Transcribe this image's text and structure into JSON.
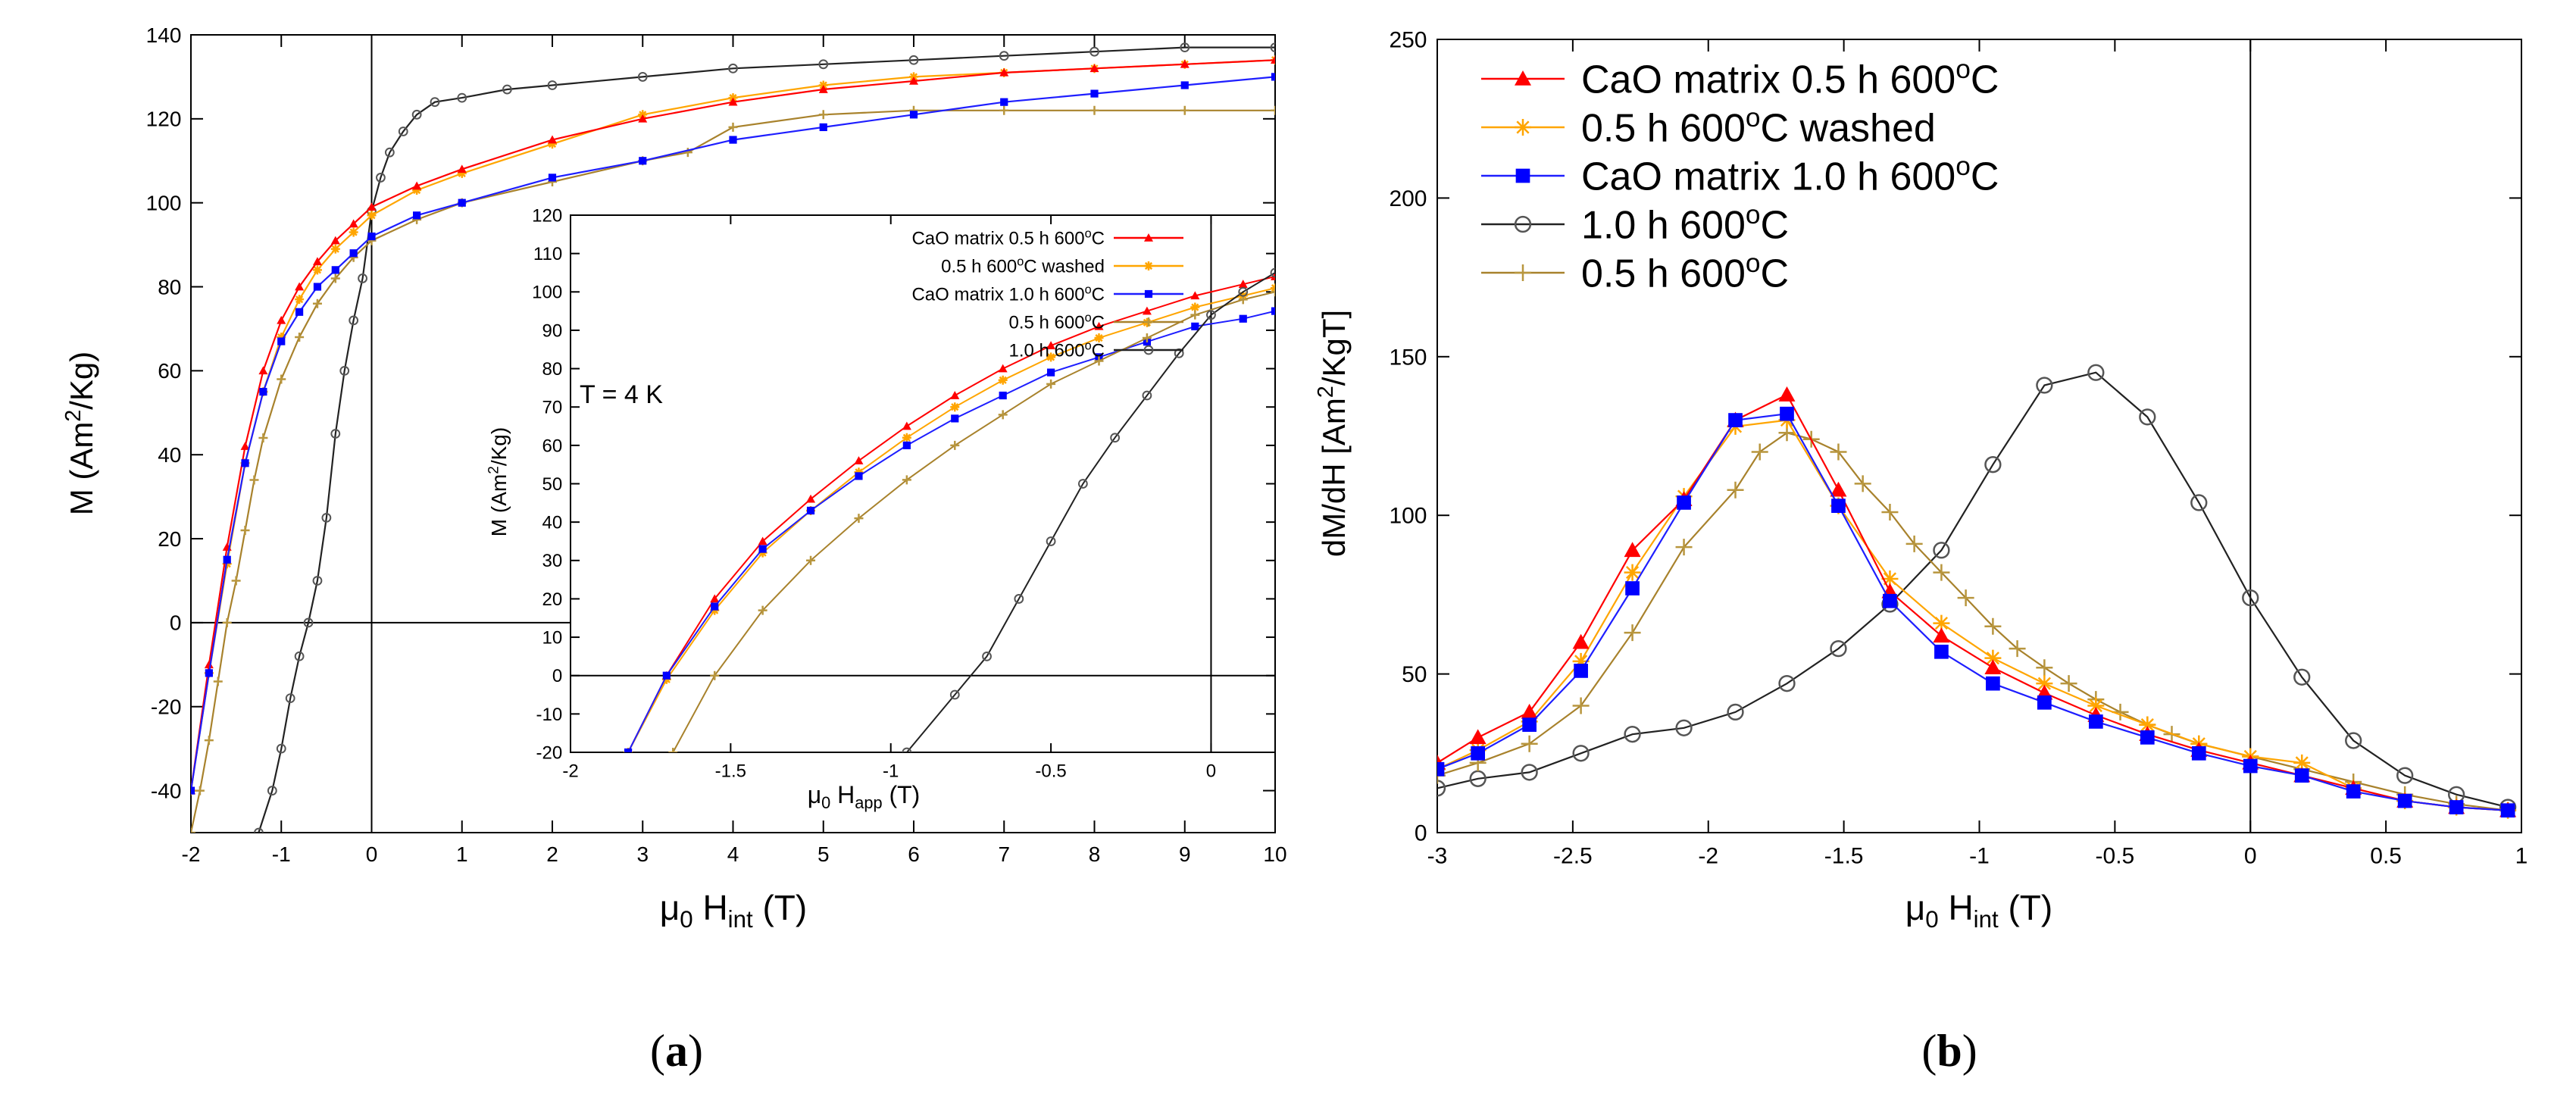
{
  "colors": {
    "cao_05": "#ff0000",
    "washed_05": "#ffa500",
    "cao_10": "#0000ff",
    "plain_10": "#555555",
    "plain_05": "#b8963e",
    "line_cao_05": "#ff0000",
    "line_washed_05": "#ffa500",
    "line_cao_10": "#1e1eff",
    "line_plain_10": "#222222",
    "line_plain_05": "#a8822c"
  },
  "chart_data": [
    {
      "id": "a",
      "type": "line",
      "caption_letter": "a",
      "xlabel": {
        "main": "μ",
        "sub0": "0",
        "mid": " H",
        "sub1": "int",
        "end": " (T)"
      },
      "ylabel": {
        "pre": "M (Am",
        "sup": "2",
        "post": "/Kg)"
      },
      "xlim": [
        -2,
        10
      ],
      "ylim": [
        -50,
        140
      ],
      "xticks": [
        -2,
        -1,
        0,
        1,
        2,
        3,
        4,
        5,
        6,
        7,
        8,
        9,
        10
      ],
      "yticks": [
        -40,
        -20,
        0,
        20,
        40,
        60,
        80,
        100,
        120,
        140
      ],
      "series": [
        {
          "name": "1.0 h 600oC",
          "key": "plain_10",
          "marker": "circle-small",
          "x": [
            -1.25,
            -1.1,
            -1.0,
            -0.9,
            -0.8,
            -0.7,
            -0.6,
            -0.5,
            -0.4,
            -0.3,
            -0.2,
            -0.1,
            0,
            0.1,
            0.2,
            0.35,
            0.5,
            0.7,
            1,
            1.5,
            2,
            3,
            4,
            5,
            6,
            7,
            8,
            9,
            10
          ],
          "y": [
            -50,
            -40,
            -30,
            -18,
            -8,
            0,
            10,
            25,
            45,
            60,
            72,
            82,
            98,
            106,
            112,
            117,
            121,
            124,
            125,
            127,
            128,
            130,
            132,
            133,
            134,
            135,
            136,
            137,
            137
          ]
        },
        {
          "name": "0.5 h 600oC",
          "key": "plain_05",
          "marker": "plus",
          "x": [
            -2,
            -1.9,
            -1.8,
            -1.7,
            -1.6,
            -1.5,
            -1.4,
            -1.3,
            -1.2,
            -1.0,
            -0.8,
            -0.6,
            -0.4,
            -0.2,
            0,
            0.5,
            1,
            2,
            3,
            3.5,
            4,
            5,
            6,
            7,
            8,
            9,
            10
          ],
          "y": [
            -50,
            -40,
            -28,
            -14,
            0,
            10,
            22,
            34,
            44,
            58,
            68,
            76,
            82,
            87,
            91,
            96,
            100,
            105,
            110,
            112,
            118,
            121,
            122,
            122,
            122,
            122,
            122
          ]
        },
        {
          "name": "0.5 h 600oC washed",
          "key": "washed_05",
          "marker": "star",
          "x": [
            -2,
            -1.8,
            -1.6,
            -1.4,
            -1.2,
            -1.0,
            -0.8,
            -0.6,
            -0.4,
            -0.2,
            0,
            0.5,
            1,
            2,
            3,
            4,
            5,
            6,
            7,
            8,
            9,
            10
          ],
          "y": [
            -40,
            -12,
            14,
            38,
            55,
            68,
            77,
            84,
            89,
            93,
            97,
            103,
            107,
            114,
            121,
            125,
            128,
            130,
            131,
            132,
            133,
            134
          ]
        },
        {
          "name": "CaO matrix 0.5 h 600oC",
          "key": "cao_05",
          "marker": "triangle",
          "x": [
            -2,
            -1.8,
            -1.6,
            -1.4,
            -1.2,
            -1.0,
            -0.8,
            -0.6,
            -0.4,
            -0.2,
            0,
            0.5,
            1,
            2,
            3,
            4,
            5,
            6,
            7,
            8,
            9,
            10
          ],
          "y": [
            -40,
            -10,
            18,
            42,
            60,
            72,
            80,
            86,
            91,
            95,
            99,
            104,
            108,
            115,
            120,
            124,
            127,
            129,
            131,
            132,
            133,
            134
          ]
        },
        {
          "name": "CaO matrix 1.0 h 600oC",
          "key": "cao_10",
          "marker": "square",
          "x": [
            -2,
            -1.8,
            -1.6,
            -1.4,
            -1.2,
            -1.0,
            -0.8,
            -0.6,
            -0.4,
            -0.2,
            0,
            0.5,
            1,
            2,
            3,
            4,
            5,
            6,
            7,
            8,
            9,
            10
          ],
          "y": [
            -40,
            -12,
            15,
            38,
            55,
            67,
            74,
            80,
            84,
            88,
            92,
            97,
            100,
            106,
            110,
            115,
            118,
            121,
            124,
            126,
            128,
            130
          ]
        }
      ],
      "inset": {
        "annotation": "T = 4 K",
        "xlabel": {
          "main": "μ",
          "sub0": "0",
          "mid": " H",
          "sub1": "app",
          "end": " (T)"
        },
        "ylabel": {
          "pre": "M (Am",
          "sup": "2",
          "post": "/Kg)"
        },
        "xlim": [
          -2,
          0.2
        ],
        "ylim": [
          -20,
          120
        ],
        "xticks": [
          -2,
          -1.5,
          -1,
          -0.5,
          0
        ],
        "yticks": [
          -20,
          -10,
          0,
          10,
          20,
          30,
          40,
          50,
          60,
          70,
          80,
          90,
          100,
          110,
          120
        ],
        "legend": [
          {
            "pre": "CaO matrix 0.5 h 600",
            "sup": "o",
            "post": "C",
            "key": "cao_05",
            "marker": "triangle"
          },
          {
            "pre": "0.5 h 600",
            "sup": "o",
            "post": "C washed",
            "key": "washed_05",
            "marker": "star"
          },
          {
            "pre": "CaO matrix 1.0 h 600",
            "sup": "o",
            "post": "C",
            "key": "cao_10",
            "marker": "square"
          },
          {
            "pre": "0.5 h 600",
            "sup": "o",
            "post": "C",
            "key": "plain_05",
            "marker": "plus"
          },
          {
            "pre": "1.0 h 600",
            "sup": "o",
            "post": "C",
            "key": "plain_10",
            "marker": "circle-small"
          }
        ],
        "series": [
          {
            "key": "cao_05",
            "marker": "triangle",
            "x": [
              -1.82,
              -1.7,
              -1.55,
              -1.4,
              -1.25,
              -1.1,
              -0.95,
              -0.8,
              -0.65,
              -0.5,
              -0.35,
              -0.2,
              -0.05,
              0.1,
              0.2
            ],
            "y": [
              -20,
              0,
              20,
              35,
              46,
              56,
              65,
              73,
              80,
              86,
              91,
              95,
              99,
              102,
              104
            ]
          },
          {
            "key": "washed_05",
            "marker": "star",
            "x": [
              -1.82,
              -1.7,
              -1.55,
              -1.4,
              -1.25,
              -1.1,
              -0.95,
              -0.8,
              -0.65,
              -0.5,
              -0.35,
              -0.2,
              -0.05,
              0.1,
              0.2
            ],
            "y": [
              -20,
              -1,
              17,
              32,
              43,
              53,
              62,
              70,
              77,
              83,
              88,
              92,
              96,
              99,
              101
            ]
          },
          {
            "key": "cao_10",
            "marker": "square",
            "x": [
              -1.82,
              -1.7,
              -1.55,
              -1.4,
              -1.25,
              -1.1,
              -0.95,
              -0.8,
              -0.65,
              -0.5,
              -0.35,
              -0.2,
              -0.05,
              0.1,
              0.2
            ],
            "y": [
              -20,
              0,
              18,
              33,
              43,
              52,
              60,
              67,
              73,
              79,
              83,
              87,
              91,
              93,
              95
            ]
          },
          {
            "key": "plain_05",
            "marker": "plus",
            "x": [
              -1.68,
              -1.55,
              -1.4,
              -1.25,
              -1.1,
              -0.95,
              -0.8,
              -0.65,
              -0.5,
              -0.35,
              -0.2,
              -0.05,
              0.1,
              0.2
            ],
            "y": [
              -20,
              0,
              17,
              30,
              41,
              51,
              60,
              68,
              76,
              82,
              88,
              94,
              98,
              100
            ]
          },
          {
            "key": "plain_10",
            "marker": "circle-small",
            "x": [
              -0.95,
              -0.8,
              -0.7,
              -0.6,
              -0.5,
              -0.4,
              -0.3,
              -0.2,
              -0.1,
              0,
              0.1,
              0.2
            ],
            "y": [
              -20,
              -5,
              5,
              20,
              35,
              50,
              62,
              73,
              84,
              94,
              100,
              105
            ]
          }
        ]
      }
    },
    {
      "id": "b",
      "type": "line",
      "caption_letter": "b",
      "xlabel": {
        "main": "μ",
        "sub0": "0",
        "mid": " H",
        "sub1": "int",
        "end": " (T)"
      },
      "ylabel": {
        "pre": "dM/dH [Am",
        "sup": "2",
        "post": "/KgT]"
      },
      "xlim": [
        -3,
        1
      ],
      "ylim": [
        0,
        250
      ],
      "xticks": [
        -3,
        -2.5,
        -2,
        -1.5,
        -1,
        -0.5,
        0,
        0.5,
        1
      ],
      "yticks": [
        0,
        50,
        100,
        150,
        200,
        250
      ],
      "legend": [
        {
          "pre": "CaO matrix 0.5 h 600",
          "sup": "o",
          "post": "C",
          "key": "cao_05",
          "marker": "triangle"
        },
        {
          "pre": "0.5 h 600",
          "sup": "o",
          "post": "C washed",
          "key": "washed_05",
          "marker": "star"
        },
        {
          "pre": "CaO matrix 1.0 h 600",
          "sup": "o",
          "post": "C",
          "key": "cao_10",
          "marker": "square"
        },
        {
          "pre": "1.0 h 600",
          "sup": "o",
          "post": "C",
          "key": "plain_10",
          "marker": "circle"
        },
        {
          "pre": "0.5 h 600",
          "sup": "o",
          "post": "C",
          "key": "plain_05",
          "marker": "plus"
        }
      ],
      "series": [
        {
          "key": "plain_10",
          "marker": "circle",
          "x": [
            -3,
            -2.85,
            -2.66,
            -2.47,
            -2.28,
            -2.09,
            -1.9,
            -1.71,
            -1.52,
            -1.33,
            -1.14,
            -0.95,
            -0.76,
            -0.57,
            -0.38,
            -0.19,
            0,
            0.19,
            0.38,
            0.57,
            0.76,
            0.95
          ],
          "y": [
            14,
            17,
            19,
            25,
            31,
            33,
            38,
            47,
            58,
            72,
            89,
            116,
            141,
            145,
            131,
            104,
            74,
            49,
            29,
            18,
            12,
            8
          ]
        },
        {
          "key": "plain_05",
          "marker": "plus",
          "x": [
            -3,
            -2.85,
            -2.66,
            -2.47,
            -2.28,
            -2.09,
            -1.9,
            -1.81,
            -1.71,
            -1.62,
            -1.52,
            -1.43,
            -1.33,
            -1.24,
            -1.14,
            -1.05,
            -0.95,
            -0.86,
            -0.76,
            -0.67,
            -0.57,
            -0.48,
            -0.38,
            -0.29,
            -0.19,
            0,
            0.19,
            0.38,
            0.57,
            0.76,
            0.95
          ],
          "y": [
            18,
            22,
            28,
            40,
            63,
            90,
            108,
            120,
            126,
            124,
            120,
            110,
            101,
            91,
            82,
            74,
            65,
            58,
            52,
            47,
            42,
            38,
            34,
            31,
            28,
            24,
            20,
            16,
            12,
            9,
            7
          ]
        },
        {
          "key": "washed_05",
          "marker": "star",
          "x": [
            -3,
            -2.85,
            -2.66,
            -2.47,
            -2.28,
            -2.09,
            -1.9,
            -1.71,
            -1.52,
            -1.33,
            -1.14,
            -0.95,
            -0.76,
            -0.57,
            -0.38,
            -0.19,
            0,
            0.19,
            0.38,
            0.57,
            0.76,
            0.95
          ],
          "y": [
            20,
            26,
            35,
            54,
            82,
            106,
            128,
            130,
            103,
            80,
            66,
            55,
            47,
            40,
            34,
            28,
            24,
            22,
            14,
            10,
            8,
            7
          ]
        },
        {
          "key": "cao_05",
          "marker": "triangle",
          "x": [
            -3,
            -2.85,
            -2.66,
            -2.47,
            -2.28,
            -2.09,
            -1.9,
            -1.71,
            -1.52,
            -1.33,
            -1.14,
            -0.95,
            -0.76,
            -0.57,
            -0.38,
            -0.19,
            0,
            0.19,
            0.38,
            0.57,
            0.76,
            0.95
          ],
          "y": [
            22,
            30,
            38,
            60,
            89,
            105,
            130,
            138,
            108,
            76,
            62,
            52,
            44,
            37,
            31,
            26,
            22,
            18,
            14,
            10,
            8,
            7
          ]
        },
        {
          "key": "cao_10",
          "marker": "square",
          "x": [
            -3,
            -2.85,
            -2.66,
            -2.47,
            -2.28,
            -2.09,
            -1.9,
            -1.71,
            -1.52,
            -1.33,
            -1.14,
            -0.95,
            -0.76,
            -0.57,
            -0.38,
            -0.19,
            0,
            0.19,
            0.38,
            0.57,
            0.76,
            0.95
          ],
          "y": [
            20,
            25,
            34,
            51,
            77,
            104,
            130,
            132,
            103,
            73,
            57,
            47,
            41,
            35,
            30,
            25,
            21,
            18,
            13,
            10,
            8,
            7
          ]
        }
      ]
    }
  ]
}
